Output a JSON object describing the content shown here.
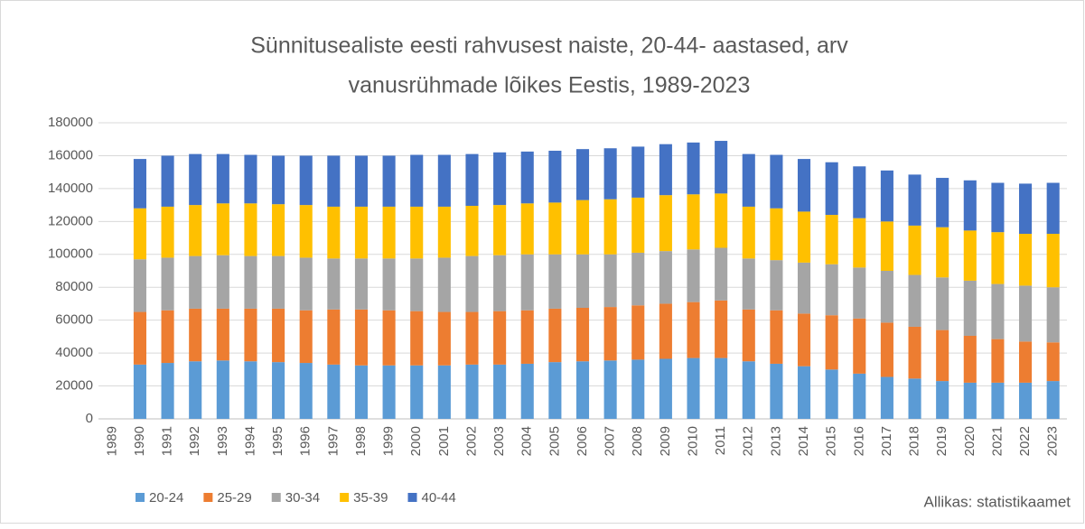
{
  "chart_data": {
    "type": "stacked_bar",
    "title": [
      "Sünnitusealiste eesti rahvusest naiste, 20-44- aastased, arv",
      "vanusrühmade lõikes Eestis, 1989-2023"
    ],
    "source": "Allikas: statistikaamet",
    "categories": [
      "1989",
      "1990",
      "1991",
      "1992",
      "1993",
      "1994",
      "1995",
      "1996",
      "1997",
      "1998",
      "1999",
      "2000",
      "2001",
      "2002",
      "2003",
      "2004",
      "2005",
      "2006",
      "2007",
      "2008",
      "2009",
      "2010",
      "2011",
      "2012",
      "2013",
      "2014",
      "2015",
      "2016",
      "2017",
      "2018",
      "2019",
      "2020",
      "2021",
      "2022",
      "2023"
    ],
    "series": [
      {
        "name": "20-24",
        "color": "#5b9bd5",
        "values": [
          null,
          33000,
          34000,
          35000,
          35500,
          35000,
          34500,
          34000,
          33000,
          32500,
          32500,
          32500,
          32500,
          33000,
          33000,
          33500,
          34500,
          35000,
          35500,
          36000,
          36500,
          37000,
          37000,
          35000,
          33500,
          32000,
          30000,
          27500,
          25500,
          24500,
          23000,
          22000,
          22000,
          22000,
          23000
        ]
      },
      {
        "name": "25-29",
        "color": "#ed7d31",
        "values": [
          null,
          32000,
          32000,
          32000,
          31500,
          32000,
          32500,
          32000,
          33500,
          34000,
          33500,
          33000,
          32500,
          32000,
          32500,
          32500,
          32500,
          32500,
          32500,
          33000,
          33500,
          34000,
          35000,
          31500,
          32500,
          32000,
          33000,
          33500,
          33000,
          31500,
          31000,
          28500,
          26500,
          25000,
          23500
        ]
      },
      {
        "name": "30-34",
        "color": "#a5a5a5",
        "values": [
          null,
          32000,
          32000,
          32000,
          32500,
          32000,
          32000,
          32000,
          31000,
          31000,
          31500,
          32000,
          33000,
          34000,
          34000,
          34000,
          33000,
          32500,
          32000,
          32000,
          32000,
          32000,
          32000,
          31000,
          30500,
          31000,
          31000,
          31000,
          31500,
          31500,
          32000,
          33500,
          33500,
          34000,
          33500
        ]
      },
      {
        "name": "35-39",
        "color": "#ffc000",
        "values": [
          null,
          31000,
          31000,
          31000,
          31500,
          32000,
          31500,
          32000,
          31500,
          31500,
          31500,
          31500,
          31000,
          30500,
          30500,
          31000,
          31500,
          33000,
          33500,
          33500,
          34000,
          33500,
          33000,
          31500,
          31500,
          31000,
          30000,
          30000,
          30000,
          30000,
          30500,
          30500,
          31500,
          31500,
          32500
        ]
      },
      {
        "name": "40-44",
        "color": "#4472c4",
        "values": [
          null,
          30000,
          31000,
          31000,
          30000,
          29500,
          29500,
          30000,
          31000,
          31000,
          31000,
          31500,
          31500,
          31500,
          32000,
          31500,
          31500,
          31000,
          31000,
          31000,
          31000,
          31500,
          32000,
          32000,
          32500,
          32000,
          32000,
          31500,
          31000,
          31000,
          30000,
          30500,
          30000,
          30500,
          31000
        ]
      }
    ],
    "ylim": [
      0,
      180000
    ],
    "yticks": [
      0,
      20000,
      40000,
      60000,
      80000,
      100000,
      120000,
      140000,
      160000,
      180000
    ],
    "grid": true,
    "legend": "bottom"
  }
}
